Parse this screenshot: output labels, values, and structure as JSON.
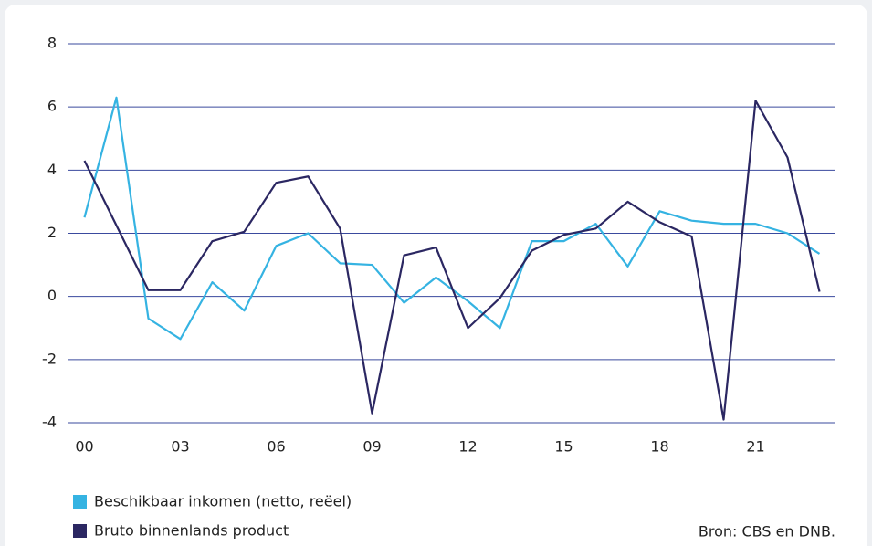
{
  "chart_data": {
    "type": "line",
    "categories": [
      "00",
      null,
      null,
      "03",
      null,
      null,
      "06",
      null,
      null,
      "09",
      null,
      null,
      "12",
      null,
      null,
      "15",
      null,
      null,
      "18",
      null,
      null,
      "21",
      null,
      null
    ],
    "series": [
      {
        "name": "Beschikbaar inkomen (netto, reëel)",
        "color": "#35b3e2",
        "values": [
          2.5,
          6.3,
          -0.7,
          -1.35,
          0.45,
          -0.45,
          1.6,
          2.0,
          1.05,
          1.0,
          -0.2,
          0.6,
          -0.15,
          -1.0,
          1.75,
          1.75,
          2.3,
          0.95,
          2.7,
          2.4,
          2.3,
          2.3,
          2.0,
          1.35
        ]
      },
      {
        "name": "Bruto binnenlands product",
        "color": "#2b2762",
        "values": [
          4.3,
          2.25,
          0.2,
          0.2,
          1.75,
          2.05,
          3.6,
          3.8,
          2.15,
          -3.7,
          1.3,
          1.55,
          -1.0,
          -0.05,
          1.45,
          1.95,
          2.15,
          3.0,
          2.35,
          1.9,
          -3.9,
          6.2,
          4.4,
          0.15
        ]
      }
    ],
    "ylim": [
      -4,
      8
    ],
    "yticks": [
      -4,
      -2,
      0,
      2,
      4,
      6,
      8
    ],
    "grid": true,
    "source": "Bron: CBS en DNB."
  }
}
